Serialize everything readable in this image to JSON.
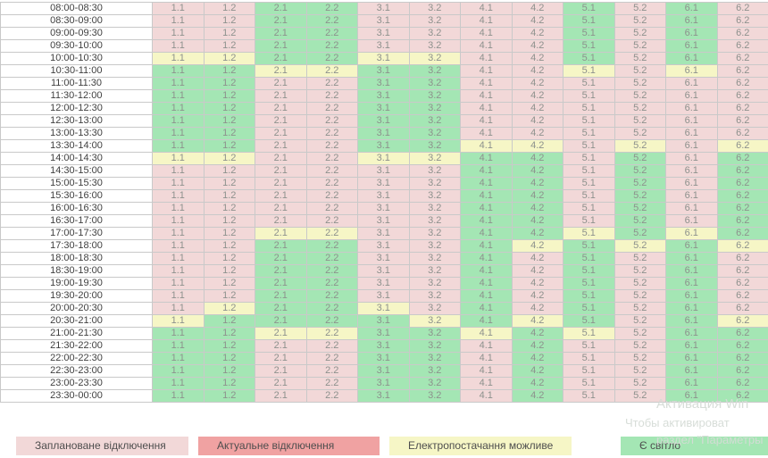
{
  "table": {
    "time_slots": [
      "08:00-08:30",
      "08:30-09:00",
      "09:00-09:30",
      "09:30-10:00",
      "10:00-10:30",
      "10:30-11:00",
      "11:00-11:30",
      "11:30-12:00",
      "12:00-12:30",
      "12:30-13:00",
      "13:00-13:30",
      "13:30-14:00",
      "14:00-14:30",
      "14:30-15:00",
      "15:00-15:30",
      "15:30-16:00",
      "16:00-16:30",
      "16:30-17:00",
      "17:00-17:30",
      "17:30-18:00",
      "18:00-18:30",
      "18:30-19:00",
      "19:00-19:30",
      "19:30-20:00",
      "20:00-20:30",
      "20:30-21:00",
      "21:00-21:30",
      "21:30-22:00",
      "22:00-22:30",
      "22:30-23:00",
      "23:00-23:30",
      "23:30-00:00"
    ],
    "groups": [
      "1.1",
      "1.2",
      "2.1",
      "2.2",
      "3.1",
      "3.2",
      "4.1",
      "4.2",
      "5.1",
      "5.2",
      "6.1",
      "6.2"
    ],
    "status_matrix": [
      "PPGGPPPPGPGP",
      "PPGGPPPPGPGP",
      "PPGGPPPPGPGP",
      "PPGGPPPPGPGP",
      "YYGGYYPPGPGP",
      "GGYYGGPPYPYP",
      "GGPPGGPPPPPP",
      "GGPPGGPPPPPP",
      "GGPPGGPPPPPP",
      "GGPPGGPPPPPP",
      "GGPPGGPPPPPP",
      "GGPPGGYYPYPY",
      "YYPPYYGGPGPG",
      "PPPPPPGGPGPG",
      "PPPPPPGGPGPG",
      "PPPPPPGGPGPG",
      "PPPPPPGGPGPG",
      "PPPPPPGGPGPG",
      "PPYYPPGGYGYG",
      "PPGGPPGYGYGY",
      "PPGGPPGPGPGP",
      "PPGGPPGPGPGP",
      "PPGGPPGPGPGP",
      "PPGGPPGPGPGP",
      "PYGGYPGPGPGP",
      "YGGGGYGYGPGY",
      "GGYYGGYGYPGG",
      "GGPPGGPGPPGG",
      "GGPPGGPGPPGG",
      "GGPPGGPGPPGG",
      "GGPPGGPGPPGG",
      "GGPPGGPGPPGG"
    ]
  },
  "statuses": {
    "P": {
      "name": "Заплановане відключення",
      "color": "#f2d8d8"
    },
    "A": {
      "name": "Актуальне відключення",
      "color": "#f0a2a2"
    },
    "Y": {
      "name": "Електропостачання можливе",
      "color": "#f6f6c6"
    },
    "G": {
      "name": "Є світло",
      "color": "#a4e6b4"
    }
  },
  "legend": {
    "items": [
      {
        "code": "P",
        "label": "Заплановане відключення"
      },
      {
        "code": "A",
        "label": "Актуальне відключення"
      },
      {
        "code": "Y",
        "label": "Електропостачання можливе"
      },
      {
        "code": "G",
        "label": "Є світло"
      }
    ]
  },
  "watermark": {
    "line1": "Активация Win",
    "line2": "Чтобы активироват",
    "line3": "раздел \"Параметры"
  }
}
